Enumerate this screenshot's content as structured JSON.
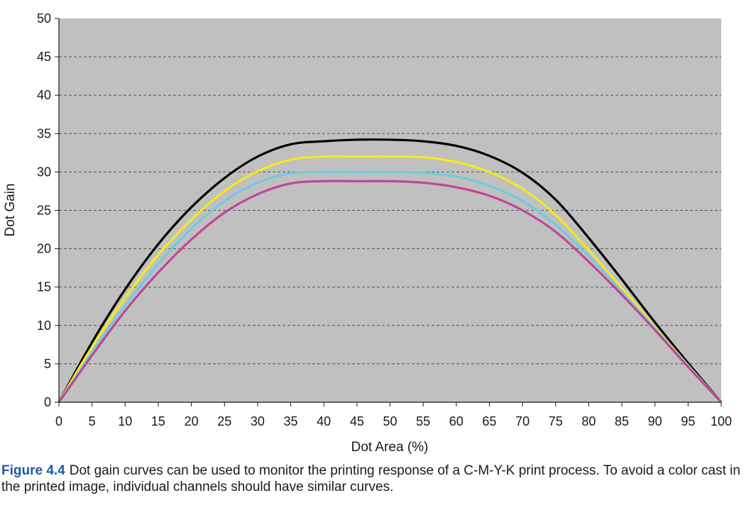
{
  "chart_data": {
    "type": "line",
    "title": "",
    "xlabel": "Dot Area (%)",
    "ylabel": "Dot Gain",
    "xlim": [
      0,
      100
    ],
    "ylim": [
      0,
      50
    ],
    "x_ticks": [
      0,
      5,
      10,
      15,
      20,
      25,
      30,
      35,
      40,
      45,
      50,
      55,
      60,
      65,
      70,
      75,
      80,
      85,
      90,
      95,
      100
    ],
    "y_ticks": [
      0,
      5,
      10,
      15,
      20,
      25,
      30,
      35,
      40,
      45,
      50
    ],
    "grid": "horizontal dashed",
    "background_color": "#c0c0c0",
    "x": [
      0,
      5,
      10,
      15,
      20,
      25,
      30,
      35,
      40,
      45,
      50,
      55,
      60,
      65,
      70,
      75,
      80,
      85,
      90,
      95,
      100
    ],
    "series": [
      {
        "color": "#000000",
        "values": [
          0,
          7.8,
          14.7,
          20.6,
          25.4,
          29.2,
          32.0,
          33.6,
          34.0,
          34.2,
          34.2,
          34.0,
          33.4,
          32.1,
          29.9,
          26.4,
          21.4,
          16.0,
          10.4,
          5.1,
          0
        ]
      },
      {
        "color": "#f2ea1d",
        "values": [
          0,
          7.2,
          13.6,
          19.2,
          23.8,
          27.5,
          30.1,
          31.6,
          32.0,
          32.0,
          32.0,
          31.9,
          31.3,
          30.0,
          27.8,
          24.4,
          19.8,
          14.9,
          9.8,
          4.8,
          0
        ]
      },
      {
        "color": "#6fcbe0",
        "values": [
          0,
          6.5,
          12.6,
          18.0,
          22.6,
          26.2,
          28.6,
          29.8,
          30.0,
          30.0,
          30.0,
          29.9,
          29.4,
          28.2,
          26.2,
          23.1,
          19.0,
          14.4,
          9.6,
          4.7,
          0
        ]
      },
      {
        "color": "#c2449a",
        "values": [
          0,
          6.1,
          11.9,
          16.9,
          21.2,
          24.7,
          27.1,
          28.5,
          28.8,
          28.8,
          28.8,
          28.6,
          28.0,
          26.9,
          25.0,
          22.2,
          18.3,
          14.0,
          9.4,
          4.6,
          0
        ]
      }
    ]
  },
  "caption": {
    "label": "Figure 4.4",
    "text": "Dot gain curves can be used to monitor the printing response of a C-M-Y-K print process. To avoid a color cast in the printed image, individual channels should have similar curves."
  }
}
